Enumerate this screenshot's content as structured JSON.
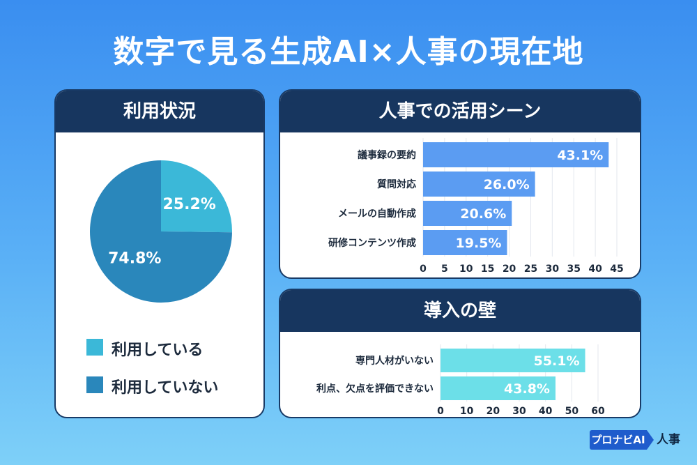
{
  "title": "数字で見る生成AI×人事の現在地",
  "chart_data": [
    {
      "type": "pie",
      "title": "利用状況",
      "slices": [
        {
          "name": "利用している",
          "value": 25.2,
          "label": "25.2%",
          "color": "#3bb8d8"
        },
        {
          "name": "利用していない",
          "value": 74.8,
          "label": "74.8%",
          "color": "#2a87bb"
        }
      ]
    },
    {
      "type": "bar",
      "orientation": "horizontal",
      "title": "人事での活用シーン",
      "categories": [
        "議事録の要約",
        "質問対応",
        "メールの自動作成",
        "研修コンテンツ作成"
      ],
      "values": [
        43.1,
        26.0,
        20.6,
        19.5
      ],
      "value_labels": [
        "43.1%",
        "26.0%",
        "20.6%",
        "19.5%"
      ],
      "xlim": [
        0,
        45
      ],
      "ticks": [
        0,
        5,
        10,
        15,
        20,
        25,
        30,
        35,
        40,
        45
      ],
      "grid": true,
      "color": "#5b9cf2"
    },
    {
      "type": "bar",
      "orientation": "horizontal",
      "title": "導入の壁",
      "categories": [
        "専門人材がいない",
        "利点、欠点を評価できない"
      ],
      "values": [
        55.1,
        43.8
      ],
      "value_labels": [
        "55.1%",
        "43.8%"
      ],
      "xlim": [
        0,
        60
      ],
      "ticks": [
        0,
        10,
        20,
        30,
        40,
        50,
        60
      ],
      "grid": true,
      "color": "#6cdfe8"
    }
  ],
  "brand": {
    "box": "プロナビAI",
    "suffix": "人事",
    "color": "#1f5ccc"
  }
}
